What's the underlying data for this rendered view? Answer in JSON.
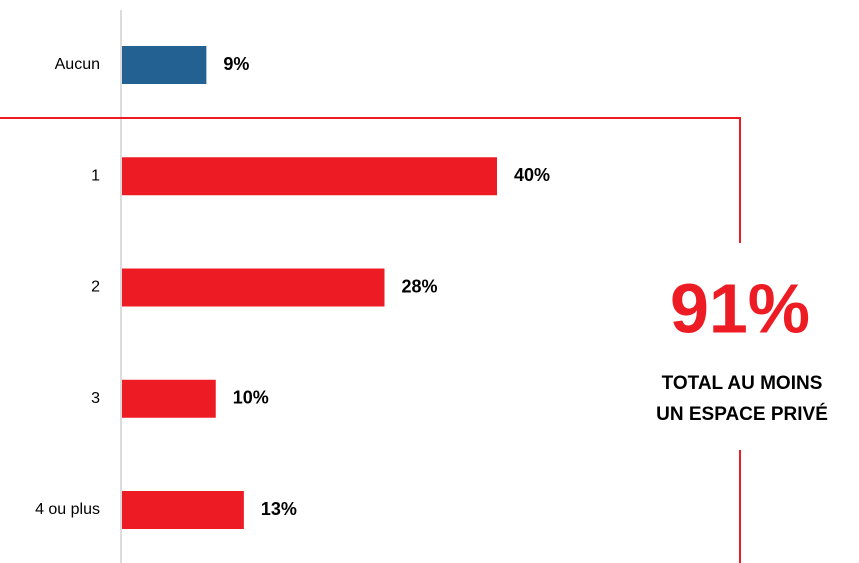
{
  "chart_data": {
    "type": "bar",
    "orientation": "horizontal",
    "categories": [
      "Aucun",
      "1",
      "2",
      "3",
      "4 ou plus"
    ],
    "values": [
      9,
      40,
      28,
      10,
      13
    ],
    "value_labels": [
      "9%",
      "40%",
      "28%",
      "10%",
      "13%"
    ],
    "colors": [
      "#236192",
      "#ed1c24",
      "#ed1c24",
      "#ed1c24",
      "#ed1c24"
    ],
    "annotation": {
      "value": "91%",
      "text": [
        "TOTAL AU MOINS",
        "UN ESPACE PRIVÉ"
      ]
    }
  }
}
